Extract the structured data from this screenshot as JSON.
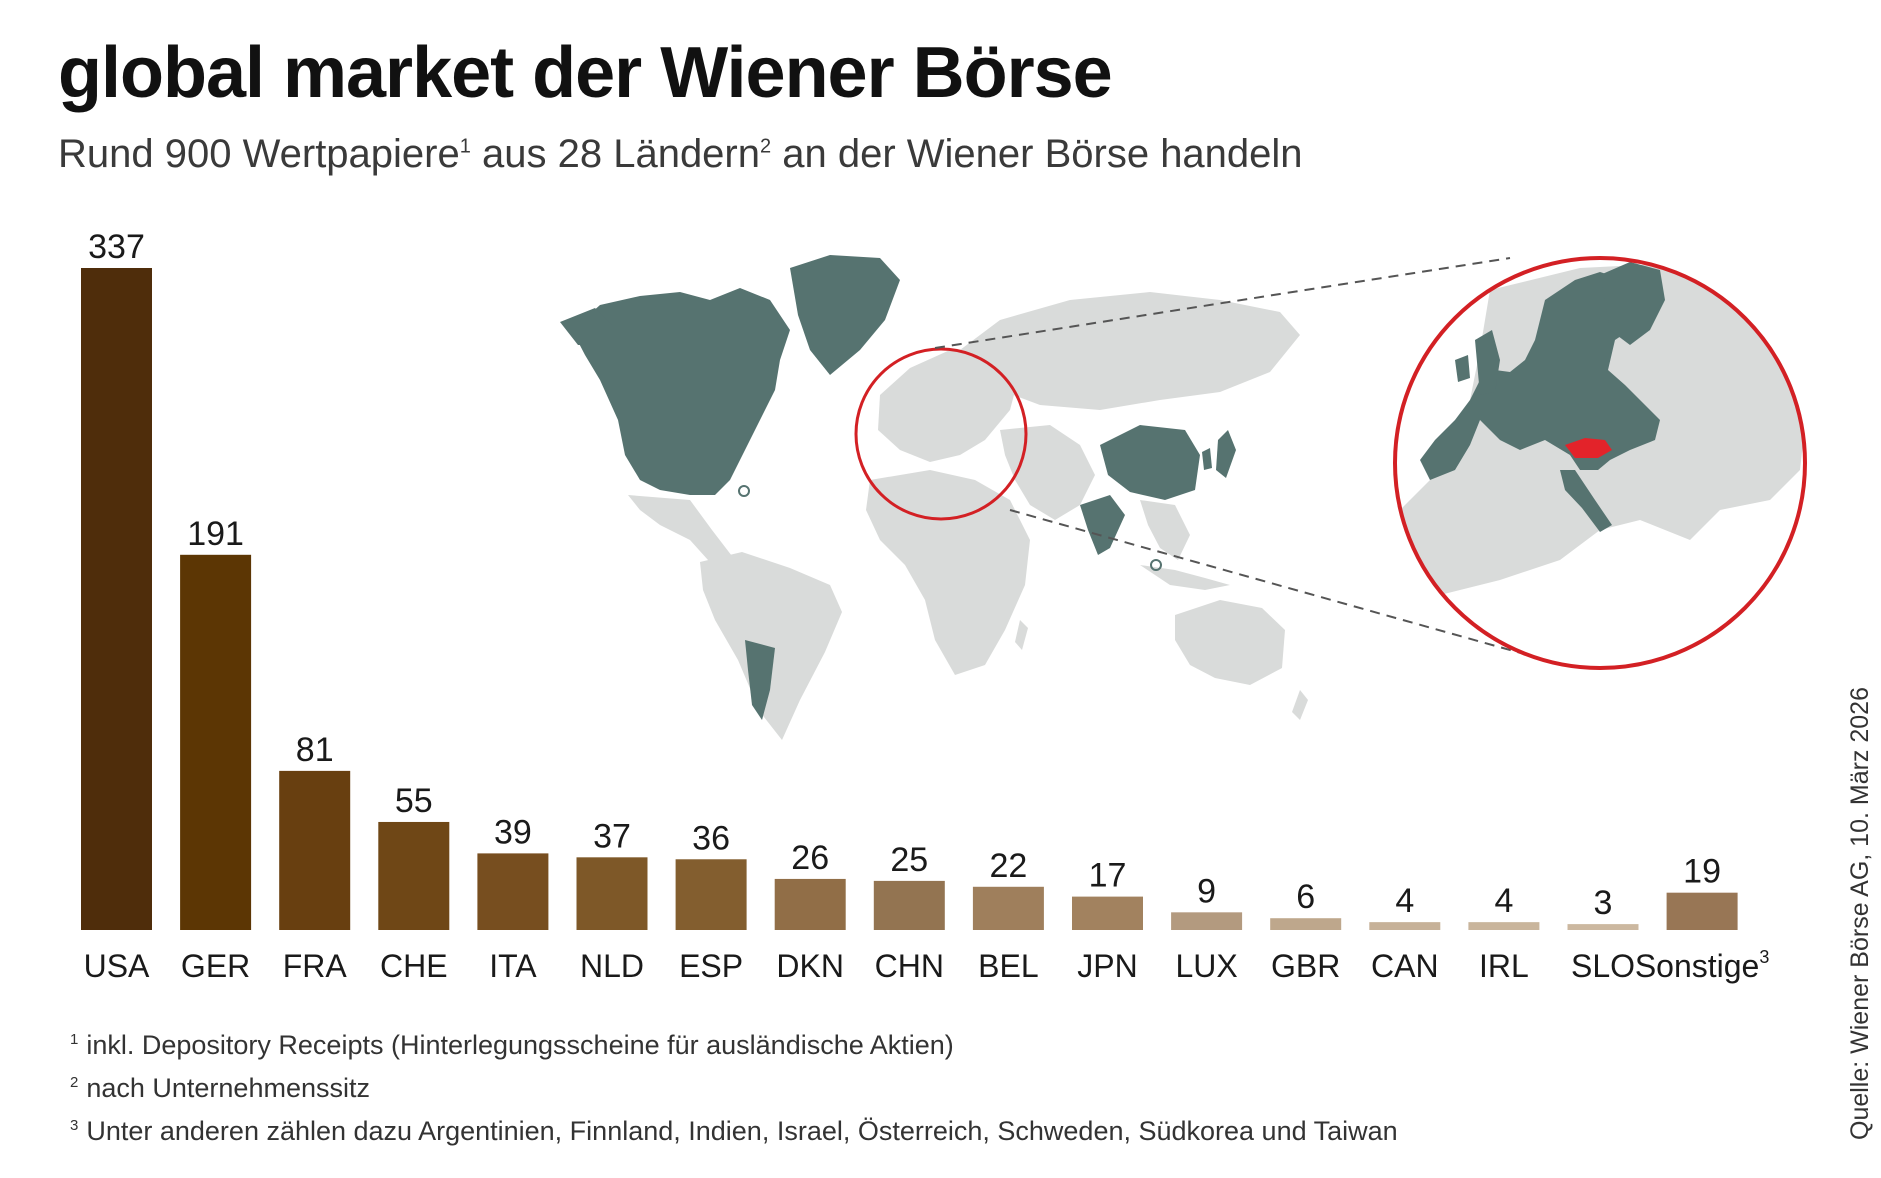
{
  "header": {
    "title": "global market der Wiener Börse",
    "subtitle_a": "Rund 900 Wertpapiere",
    "subtitle_sup1": "1",
    "subtitle_b": " aus 28 Ländern",
    "subtitle_sup2": "2",
    "subtitle_c": " an der Wiener Börse handeln"
  },
  "chart_data": {
    "type": "bar",
    "title": "global market der Wiener Börse",
    "categories": [
      "USA",
      "GER",
      "FRA",
      "CHE",
      "ITA",
      "NLD",
      "ESP",
      "DKN",
      "CHN",
      "BEL",
      "JPN",
      "LUX",
      "GBR",
      "CAN",
      "IRL",
      "SLO",
      "Sonstige"
    ],
    "category_superscripts": {
      "Sonstige": "3"
    },
    "values": [
      337,
      191,
      81,
      55,
      39,
      37,
      36,
      26,
      25,
      22,
      17,
      9,
      6,
      4,
      4,
      3,
      19
    ],
    "colors": [
      "#4f2d0b",
      "#5c3604",
      "#683f10",
      "#6f4716",
      "#774e1f",
      "#7e5828",
      "#835e2f",
      "#916e47",
      "#937451",
      "#9f7f5c",
      "#a2825f",
      "#b39a7f",
      "#bea78c",
      "#c6b198",
      "#c9b59c",
      "#ccb8a0",
      "#987655"
    ],
    "ylim": [
      0,
      337
    ],
    "grid": false,
    "legend": "none"
  },
  "map": {
    "land_color": "#d9dbda",
    "highlight_color": "#567370",
    "austria_color": "#e3232a",
    "circle_color": "#d32024"
  },
  "footnotes": [
    {
      "mark": "1",
      "text": "inkl. Depository Receipts (Hinterlegungsscheine für ausländische Aktien)"
    },
    {
      "mark": "2",
      "text": "nach Unternehmenssitz"
    },
    {
      "mark": "3",
      "text": "Unter anderen zählen dazu Argentinien, Finnland, Indien, Israel, Österreich, Schweden, Südkorea und Taiwan"
    }
  ],
  "source": "Quelle: Wiener Börse AG, 10. März 2026"
}
